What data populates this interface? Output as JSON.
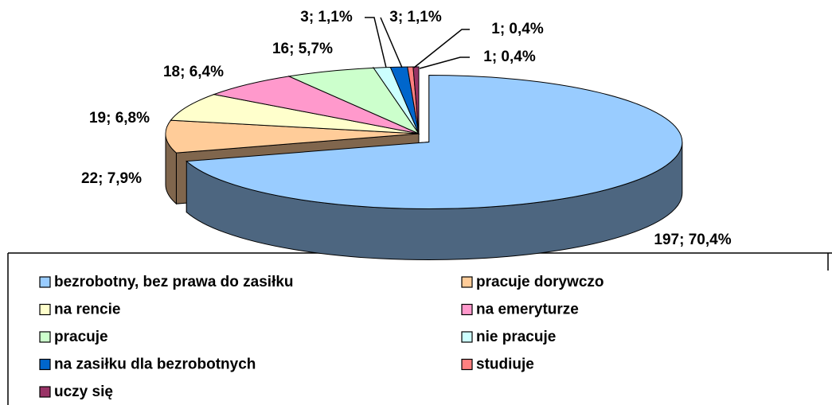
{
  "chart_data": {
    "type": "pie3d",
    "categories": [
      "bezrobotny, bez prawa do zasiłku",
      "pracuje dorywczo",
      "na rencie",
      "na emeryturze",
      "pracuje",
      "nie pracuje",
      "na zasiłku dla bezrobotnych",
      "studiuje",
      "uczy się"
    ],
    "values": [
      197,
      22,
      19,
      18,
      16,
      3,
      3,
      1,
      1
    ],
    "value_labels": [
      "197; 70,4%",
      "22; 7,9%",
      "19; 6,8%",
      "18; 6,4%",
      "16; 5,7%",
      "3; 1,1%",
      "3; 1,1%",
      "1; 0,4%",
      "1; 0,4%"
    ],
    "colors": [
      "#99ccff",
      "#ffcc99",
      "#ffffcc",
      "#ff99cc",
      "#ccffcc",
      "#ccffff",
      "#0066cc",
      "#ff8080",
      "#993366"
    ],
    "legend": "bottom"
  }
}
